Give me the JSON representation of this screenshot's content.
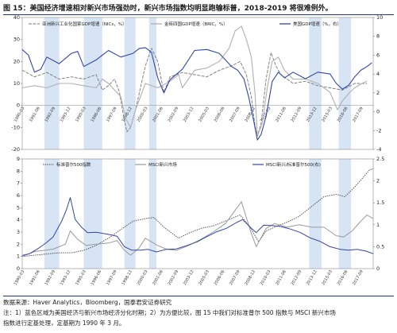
{
  "title": "图 15：美国经济增速相对新兴市场强劲时，新兴市场指数均明显跑输标普，2018-2019 将很难例外。",
  "footer": {
    "source": "数据来源：Haver Analytics，Bloomberg，国泰君安证券研究",
    "note1": "注：1）蓝色区域为美国经济与新兴市场经济分化时期；2）为方便比较，图 15 中我们对标准普尔 500 指数与 MSCI 新兴市场",
    "note2": "指数进行定基处理，定基期为 1990 年 3 月。"
  },
  "colors": {
    "shade": "#c9dbf0",
    "em_gdp": "#777777",
    "bric_gdp": "#b0b0b0",
    "us_gdp": "#3344aa",
    "sp500": "#444444",
    "msci_em": "#999999",
    "ratio": "#3344aa"
  },
  "chart_data": [
    {
      "type": "line",
      "legend": [
        "亚洲新兴工业化国家GDP增速（NICs，%）",
        "金砖四国GDP增速（BRIC，%）",
        "美国GDP增速（%，右）"
      ],
      "legend_position": "top",
      "x_labels": [
        "1990-03",
        "1991-06",
        "1992-09",
        "1993-12",
        "1995-03",
        "1996-06",
        "1997-09",
        "1998-12",
        "2000-03",
        "2001-06",
        "2002-09",
        "2003-12",
        "2005-03",
        "2006-06",
        "2007-09",
        "2008-12",
        "2010-03",
        "2011-06",
        "2012-09",
        "2013-12",
        "2015-03",
        "2016-06",
        "2017-09"
      ],
      "x_range": [
        1990.0,
        2018.5
      ],
      "y_left": {
        "ticks": [
          -20,
          -10,
          0,
          10,
          20,
          30,
          40
        ],
        "range": [
          -20,
          40
        ]
      },
      "y_right": {
        "ticks": [
          -4,
          -2,
          0,
          2,
          4,
          6,
          8,
          10
        ],
        "range": [
          -4,
          10
        ]
      },
      "shaded_periods": [
        [
          1991.8,
          1993.0
        ],
        [
          1995.0,
          1996.5
        ],
        [
          1998.3,
          1999.2
        ],
        [
          2000.3,
          2000.9
        ],
        [
          2013.3,
          2014.3
        ],
        [
          2015.7,
          2016.7
        ]
      ],
      "series": [
        {
          "name": "亚洲新兴工业化国家GDP增速（NICs，%）",
          "axis": "left",
          "x": [
            1990.0,
            1991.0,
            1992.0,
            1993.0,
            1994.0,
            1995.0,
            1996.0,
            1996.5,
            1997.0,
            1997.5,
            1997.9,
            1998.2,
            1998.5,
            1998.8,
            1999.2,
            1999.6,
            2000.0,
            2000.5,
            2001.0,
            2001.5,
            2002.0,
            2003.0,
            2004.0,
            2005.0,
            2006.0,
            2007.0,
            2007.7,
            2008.2,
            2008.6,
            2008.9,
            2009.1,
            2009.4,
            2009.8,
            2010.2,
            2010.6,
            2011.0,
            2012.0,
            2013.0,
            2014.0,
            2015.0,
            2016.0,
            2017.0,
            2018.0
          ],
          "y": [
            16,
            13,
            15,
            12,
            13,
            12,
            14,
            7,
            9,
            12,
            6,
            -4,
            -12,
            -10,
            -2,
            8,
            18,
            26,
            20,
            6,
            13,
            15,
            14,
            13,
            16,
            18,
            20,
            14,
            4,
            -9,
            -14,
            -8,
            12,
            24,
            18,
            14,
            10,
            11,
            9,
            8,
            7,
            10,
            10
          ]
        },
        {
          "name": "金砖四国GDP增速（BRIC，%）",
          "axis": "left",
          "x": [
            1990.0,
            1991.0,
            1992.0,
            1993.0,
            1994.0,
            1995.0,
            1996.0,
            1996.5,
            1997.0,
            1997.5,
            1998.0,
            1998.4,
            1998.8,
            1999.2,
            2000.0,
            2001.0,
            2002.0,
            2002.7,
            2003.0,
            2004.0,
            2005.0,
            2006.0,
            2006.8,
            2007.3,
            2007.8,
            2008.2,
            2008.6,
            2008.9,
            2009.1,
            2009.5,
            2009.9,
            2010.3,
            2010.8,
            2011.3,
            2012.0,
            2013.0,
            2014.0,
            2015.0,
            2015.6,
            2016.0,
            2016.6,
            2017.0,
            2017.6,
            2018.0
          ],
          "y": [
            8,
            9,
            8,
            10,
            10,
            9,
            8,
            12,
            10,
            7,
            4,
            -6,
            -10,
            -2,
            10,
            8,
            11,
            14,
            8,
            16,
            17,
            20,
            26,
            34,
            36,
            30,
            22,
            6,
            -14,
            -8,
            8,
            20,
            22,
            16,
            12,
            12,
            10,
            6,
            -2,
            2,
            6,
            8,
            10,
            11
          ]
        },
        {
          "name": "美国GDP增速（%，右）",
          "axis": "right",
          "x": [
            1990.0,
            1990.5,
            1991.0,
            1991.5,
            1992.0,
            1993.0,
            1994.0,
            1994.5,
            1995.0,
            1996.0,
            1997.0,
            1998.0,
            1999.0,
            1999.5,
            2000.0,
            2000.5,
            2001.0,
            2001.5,
            2002.0,
            2003.0,
            2004.0,
            2005.0,
            2006.0,
            2006.5,
            2007.0,
            2007.5,
            2008.0,
            2008.4,
            2008.8,
            2009.1,
            2009.4,
            2009.8,
            2010.3,
            2010.8,
            2011.3,
            2012.0,
            2013.0,
            2014.0,
            2015.0,
            2015.5,
            2016.0,
            2016.5,
            2017.0,
            2017.5,
            2018.0,
            2018.4
          ],
          "y": [
            6.6,
            6.0,
            4.2,
            4.5,
            5.8,
            5.1,
            6.2,
            6.4,
            4.8,
            5.5,
            6.5,
            5.8,
            6.2,
            6.7,
            6.8,
            6.3,
            3.6,
            2.0,
            3.4,
            4.5,
            6.5,
            6.6,
            6.2,
            5.5,
            4.8,
            4.4,
            3.5,
            1.5,
            -1.0,
            -3.0,
            -2.4,
            -0.5,
            3.2,
            4.2,
            3.6,
            4.2,
            3.5,
            4.2,
            4.0,
            3.0,
            2.4,
            2.8,
            3.7,
            4.4,
            4.8,
            5.2
          ]
        }
      ]
    },
    {
      "type": "line",
      "legend": [
        "标准普尔500指数",
        "MSCI新兴市场",
        "MSCI新兴/标准普尔500(右)"
      ],
      "legend_position": "top",
      "x_labels": [
        "1990-03",
        "1991-06",
        "1992-09",
        "1993-12",
        "1995-03",
        "1996-06",
        "1997-09",
        "1998-12",
        "2000-03",
        "2001-06",
        "2002-09",
        "2003-12",
        "2005-03",
        "2006-06",
        "2007-09",
        "2008-12",
        "2010-03",
        "2011-06",
        "2012-09",
        "2013-12",
        "2015-03",
        "2016-06",
        "2017-09"
      ],
      "x_range": [
        1990.0,
        2018.5
      ],
      "y_left": {
        "ticks": [
          0,
          1,
          2,
          3,
          4,
          5,
          6,
          7,
          8,
          9
        ],
        "range": [
          0,
          9
        ]
      },
      "y_right": {
        "ticks": [
          0,
          0.5,
          1,
          1.5,
          2,
          2.5
        ],
        "range": [
          0,
          2.5
        ]
      },
      "shaded_periods": [
        [
          1991.8,
          1993.0
        ],
        [
          1995.0,
          1996.5
        ],
        [
          1998.3,
          1999.2
        ],
        [
          2000.3,
          2000.9
        ],
        [
          2013.3,
          2014.3
        ],
        [
          2015.7,
          2016.7
        ]
      ],
      "series": [
        {
          "name": "标准普尔500指数",
          "axis": "left",
          "x": [
            1990.0,
            1991.0,
            1992.0,
            1993.0,
            1994.0,
            1995.0,
            1996.0,
            1997.0,
            1998.0,
            1999.0,
            2000.0,
            2000.7,
            2001.5,
            2002.7,
            2003.5,
            2004.5,
            2005.5,
            2006.5,
            2007.7,
            2008.5,
            2009.2,
            2009.8,
            2010.5,
            2011.5,
            2012.5,
            2013.5,
            2014.5,
            2015.5,
            2016.2,
            2017.0,
            2017.7,
            2018.2,
            2018.5
          ],
          "y": [
            1.0,
            1.1,
            1.2,
            1.3,
            1.3,
            1.5,
            1.9,
            2.5,
            3.2,
            3.9,
            4.1,
            4.2,
            3.4,
            2.5,
            2.9,
            3.3,
            3.5,
            3.9,
            4.4,
            3.4,
            2.2,
            3.1,
            3.4,
            3.8,
            4.3,
            5.1,
            5.9,
            6.1,
            5.9,
            6.7,
            7.5,
            8.1,
            8.2
          ]
        },
        {
          "name": "MSCI新兴市场",
          "axis": "left",
          "x": [
            1990.0,
            1991.0,
            1991.8,
            1992.5,
            1993.5,
            1993.9,
            1994.5,
            1995.2,
            1996.0,
            1997.0,
            1997.7,
            1998.3,
            1998.8,
            1999.5,
            2000.0,
            2001.0,
            2001.7,
            2002.5,
            2003.5,
            2004.5,
            2005.5,
            2006.5,
            2007.3,
            2007.8,
            2008.5,
            2009.0,
            2009.8,
            2010.5,
            2011.5,
            2012.5,
            2013.5,
            2014.5,
            2015.5,
            2016.1,
            2016.8,
            2017.5,
            2018.0,
            2018.5
          ],
          "y": [
            1.0,
            1.4,
            1.5,
            1.6,
            2.0,
            3.1,
            2.4,
            1.9,
            2.0,
            2.1,
            2.3,
            1.5,
            1.1,
            1.7,
            2.5,
            1.9,
            1.6,
            1.5,
            1.9,
            2.4,
            3.0,
            3.7,
            4.8,
            5.5,
            3.2,
            1.8,
            3.3,
            3.7,
            3.4,
            3.6,
            3.4,
            3.4,
            2.7,
            2.6,
            3.1,
            3.9,
            4.4,
            4.1
          ]
        },
        {
          "name": "MSCI新兴/标准普尔500(右)",
          "axis": "right",
          "x": [
            1990.0,
            1990.6,
            1991.3,
            1991.9,
            1992.5,
            1993.2,
            1993.6,
            1993.9,
            1994.3,
            1994.8,
            1995.3,
            1996.0,
            1997.0,
            1997.7,
            1998.3,
            1998.9,
            1999.6,
            2000.2,
            2000.9,
            2001.7,
            2002.5,
            2003.3,
            2004.2,
            2005.0,
            2005.8,
            2006.6,
            2007.4,
            2007.9,
            2008.5,
            2009.0,
            2009.6,
            2010.3,
            2011.0,
            2011.8,
            2012.6,
            2013.4,
            2014.2,
            2015.0,
            2015.8,
            2016.5,
            2017.2,
            2017.9,
            2018.5
          ],
          "y": [
            0.3,
            0.34,
            0.46,
            0.58,
            0.72,
            1.08,
            1.35,
            1.62,
            1.12,
            0.95,
            0.82,
            0.83,
            0.78,
            0.74,
            0.5,
            0.42,
            0.42,
            0.44,
            0.38,
            0.44,
            0.45,
            0.52,
            0.61,
            0.73,
            0.84,
            0.92,
            1.05,
            1.12,
            0.95,
            0.82,
            0.99,
            0.98,
            0.96,
            0.9,
            0.82,
            0.7,
            0.62,
            0.5,
            0.44,
            0.42,
            0.44,
            0.4,
            0.34
          ]
        }
      ]
    }
  ]
}
